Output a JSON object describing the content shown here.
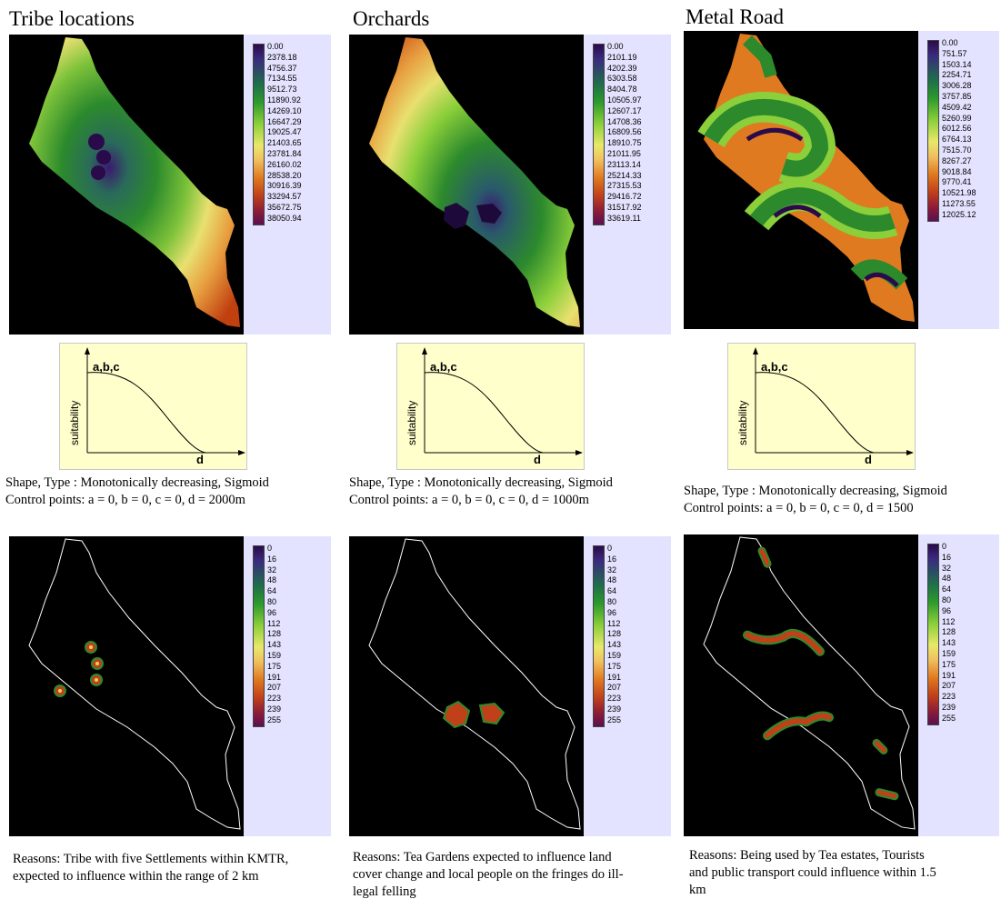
{
  "colors": {
    "panel_bg": "#e3e2ff",
    "map_bg": "#000000",
    "curve_bg": "#ffffcc",
    "scale": [
      "#2a0a4a",
      "#3a2a80",
      "#1e6f4a",
      "#2c9a2c",
      "#8bcf3a",
      "#e8e86a",
      "#f0c060",
      "#e07a20",
      "#c0401a",
      "#8a1a3a",
      "#5a1050"
    ]
  },
  "columns": [
    {
      "title": "Tribe locations",
      "top_legend": [
        "0.00",
        "2378.18",
        "4756.37",
        "7134.55",
        "9512.73",
        "11890.92",
        "14269.10",
        "16647.29",
        "19025.47",
        "21403.65",
        "23781.84",
        "26160.02",
        "28538.20",
        "30916.39",
        "33294.57",
        "35672.75",
        "38050.94"
      ],
      "curve": {
        "top_label": "a,b,c",
        "y_label": "suitability",
        "x_label": "d"
      },
      "shape_line": "Shape, Type : Monotonically decreasing, Sigmoid",
      "control_line": "Control points: a = 0, b = 0, c = 0,  d = 2000m",
      "bottom_legend": [
        "0",
        "16",
        "32",
        "48",
        "64",
        "80",
        "96",
        "112",
        "128",
        "143",
        "159",
        "175",
        "191",
        "207",
        "223",
        "239",
        "255"
      ],
      "reason": "Reasons: Tribe with five Settlements within KMTR, expected to influence within the range of 2 km"
    },
    {
      "title": "Orchards",
      "top_legend": [
        "0.00",
        "2101.19",
        "4202.39",
        "6303.58",
        "8404.78",
        "10505.97",
        "12607.17",
        "14708.36",
        "16809.56",
        "18910.75",
        "21011.95",
        "23113.14",
        "25214.33",
        "27315.53",
        "29416.72",
        "31517.92",
        "33619.11"
      ],
      "curve": {
        "top_label": "a,b,c",
        "y_label": "suitability",
        "x_label": "d"
      },
      "shape_line": "Shape, Type : Monotonically decreasing, Sigmoid",
      "control_line": "Control points: a = 0, b = 0, c = 0,  d = 1000m",
      "bottom_legend": [
        "0",
        "16",
        "32",
        "48",
        "64",
        "80",
        "96",
        "112",
        "128",
        "143",
        "159",
        "175",
        "191",
        "207",
        "223",
        "239",
        "255"
      ],
      "reason": "Reasons: Tea Gardens expected to influence land cover change and local people on the fringes do ill-legal felling"
    },
    {
      "title": "Metal Road",
      "top_legend": [
        "0.00",
        "751.57",
        "1503.14",
        "2254.71",
        "3006.28",
        "3757.85",
        "4509.42",
        "5260.99",
        "6012.56",
        "6764.13",
        "7515.70",
        "8267.27",
        "9018.84",
        "9770.41",
        "10521.98",
        "11273.55",
        "12025.12"
      ],
      "curve": {
        "top_label": "a,b,c",
        "y_label": "suitability",
        "x_label": "d"
      },
      "shape_line": "Shape, Type : Monotonically decreasing, Sigmoid",
      "control_line": "Control points: a = 0, b = 0, c = 0,  d = 1500",
      "bottom_legend": [
        "0",
        "16",
        "32",
        "48",
        "64",
        "80",
        "96",
        "112",
        "128",
        "143",
        "159",
        "175",
        "191",
        "207",
        "223",
        "239",
        "255"
      ],
      "reason": "Reasons: Being used by Tea estates, Tourists and public transport could influence within 1.5 km"
    }
  ]
}
